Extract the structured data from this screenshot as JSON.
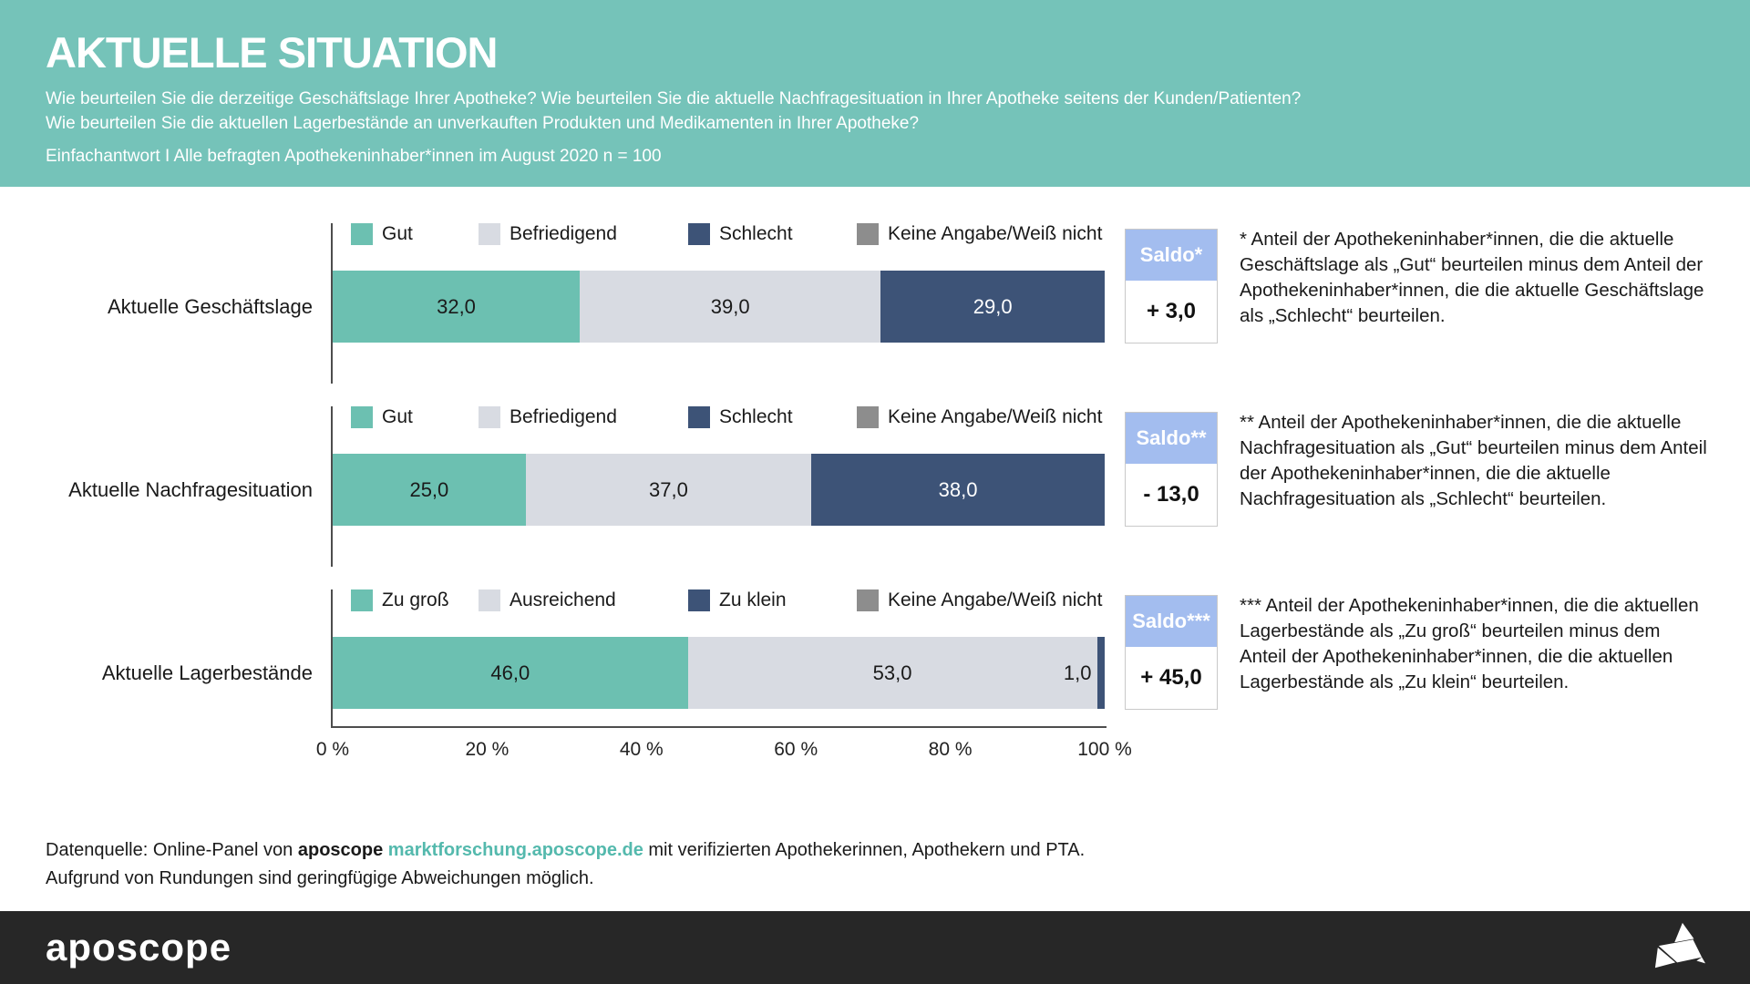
{
  "header": {
    "title": "AKTUELLE SITUATION",
    "question_line1": "Wie beurteilen Sie die derzeitige Geschäftslage Ihrer Apotheke? Wie beurteilen Sie die aktuelle Nachfragesituation in Ihrer Apotheke seitens der Kunden/Patienten?",
    "question_line2": "Wie beurteilen Sie die aktuellen Lagerbestände an unverkauften Produkten und Medikamenten in Ihrer Apotheke?",
    "meta": "Einfachantwort I Alle befragten Apothekeninhaber*innen im August 2020 n = 100"
  },
  "colors": {
    "header_bg": "#75C3B9",
    "teal": "#6CC0B1",
    "light_gray": "#D8DBE2",
    "navy": "#3D5377",
    "neutral_gray": "#8D8D8D",
    "saldo_blue": "#A3BDEF",
    "footer_bg": "#272727",
    "link": "#54B9AD",
    "axis": "#4d4d4d"
  },
  "chart_data": {
    "type": "bar",
    "orientation": "horizontal-stacked",
    "unit": "percent",
    "xlim": [
      0,
      100
    ],
    "x_ticks": [
      "0 %",
      "20 %",
      "40 %",
      "60 %",
      "80 %",
      "100 %"
    ],
    "legend_position": "above-each-bar",
    "rows": [
      {
        "label": "Aktuelle Geschäftslage",
        "legend": [
          {
            "label": "Gut",
            "color": "#6CC0B1"
          },
          {
            "label": "Befriedigend",
            "color": "#D8DBE2"
          },
          {
            "label": "Schlecht",
            "color": "#3D5377"
          },
          {
            "label": "Keine Angabe/Weiß nicht",
            "color": "#8D8D8D"
          }
        ],
        "segments": [
          {
            "name": "Gut",
            "value": 32.0,
            "display": "32,0",
            "color": "#6CC0B1",
            "text_color": "#1a1a1a"
          },
          {
            "name": "Befriedigend",
            "value": 39.0,
            "display": "39,0",
            "color": "#D8DBE2",
            "text_color": "#1a1a1a"
          },
          {
            "name": "Schlecht",
            "value": 29.0,
            "display": "29,0",
            "color": "#3D5377",
            "text_color": "#ffffff"
          }
        ],
        "saldo": {
          "label": "Saldo*",
          "value": "+ 3,0"
        },
        "annotation": "* Anteil der Apothekeninhaber*innen, die die aktuelle Geschäftslage als „Gut“ beurteilen minus dem Anteil der Apothekeninhaber*innen, die die aktuelle Geschäftslage als „Schlecht“ beurteilen."
      },
      {
        "label": "Aktuelle Nachfragesituation",
        "legend": [
          {
            "label": "Gut",
            "color": "#6CC0B1"
          },
          {
            "label": "Befriedigend",
            "color": "#D8DBE2"
          },
          {
            "label": "Schlecht",
            "color": "#3D5377"
          },
          {
            "label": "Keine Angabe/Weiß nicht",
            "color": "#8D8D8D"
          }
        ],
        "segments": [
          {
            "name": "Gut",
            "value": 25.0,
            "display": "25,0",
            "color": "#6CC0B1",
            "text_color": "#1a1a1a"
          },
          {
            "name": "Befriedigend",
            "value": 37.0,
            "display": "37,0",
            "color": "#D8DBE2",
            "text_color": "#1a1a1a"
          },
          {
            "name": "Schlecht",
            "value": 38.0,
            "display": "38,0",
            "color": "#3D5377",
            "text_color": "#ffffff"
          }
        ],
        "saldo": {
          "label": "Saldo**",
          "value": "- 13,0"
        },
        "annotation": "** Anteil der Apothekeninhaber*innen, die die aktuelle Nachfragesituation als „Gut“ beurteilen minus dem Anteil der Apothekeninhaber*innen, die die aktuelle Nachfragesituation als „Schlecht“ beurteilen."
      },
      {
        "label": "Aktuelle Lagerbestände",
        "legend": [
          {
            "label": "Zu groß",
            "color": "#6CC0B1"
          },
          {
            "label": "Ausreichend",
            "color": "#D8DBE2"
          },
          {
            "label": "Zu klein",
            "color": "#3D5377"
          },
          {
            "label": "Keine Angabe/Weiß nicht",
            "color": "#8D8D8D"
          }
        ],
        "segments": [
          {
            "name": "Zu groß",
            "value": 46.0,
            "display": "46,0",
            "color": "#6CC0B1",
            "text_color": "#1a1a1a"
          },
          {
            "name": "Ausreichend",
            "value": 53.0,
            "display": "53,0",
            "color": "#D8DBE2",
            "text_color": "#1a1a1a"
          },
          {
            "name": "Zu klein",
            "value": 1.0,
            "display": "1,0",
            "color": "#3D5377",
            "text_color": "#1a1a1a"
          }
        ],
        "saldo": {
          "label": "Saldo***",
          "value": "+ 45,0"
        },
        "annotation": "*** Anteil der Apothekeninhaber*innen, die die aktuellen Lagerbestände als „Zu groß“ beurteilen minus dem Anteil der Apothekeninhaber*innen, die die aktuellen Lagerbestände als „Zu klein“ beurteilen."
      }
    ]
  },
  "source": {
    "prefix": "Datenquelle: Online-Panel von ",
    "brand": "aposcope",
    "link": "marktforschung.aposcope.de",
    "suffix": " mit verifizierten Apothekerinnen, Apothekern und PTA.",
    "note": "Aufgrund von Rundungen sind geringfügige Abweichungen möglich."
  },
  "brandbar": {
    "logo_text": "aposcope",
    "icon": "origami-bird-icon"
  }
}
